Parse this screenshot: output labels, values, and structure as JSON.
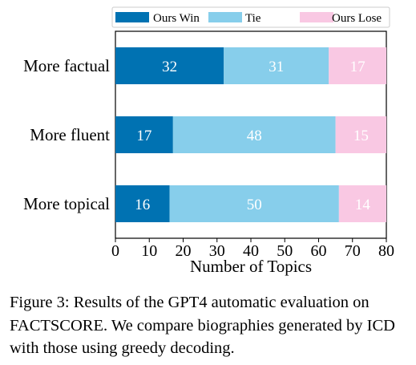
{
  "chart_data": {
    "type": "bar",
    "orientation": "horizontal",
    "stacked": true,
    "categories": [
      "More factual",
      "More fluent",
      "More topical"
    ],
    "series": [
      {
        "name": "Ours Win",
        "values": [
          32,
          17,
          16
        ],
        "color": "#0072B2"
      },
      {
        "name": "Tie",
        "values": [
          31,
          48,
          50
        ],
        "color": "#87CEEB"
      },
      {
        "name": "Ours Lose",
        "values": [
          17,
          15,
          14
        ],
        "color": "#F9C8E3"
      }
    ],
    "xlabel": "Number of Topics",
    "xlim": [
      0,
      80
    ],
    "xticks": [
      "0",
      "10",
      "20",
      "30",
      "40",
      "50",
      "60",
      "70",
      "80"
    ],
    "legend_position": "top",
    "grid": false
  },
  "caption": {
    "label": "Figure 3:",
    "part1": "Results of the GPT4 automatic evaluation on",
    "factscore_fa": "FA",
    "factscore_ct": "CT",
    "factscore_s": "S",
    "factscore_core": "CORE",
    "part2": ". We compare biographies generated by ICD with those using greedy decoding."
  }
}
